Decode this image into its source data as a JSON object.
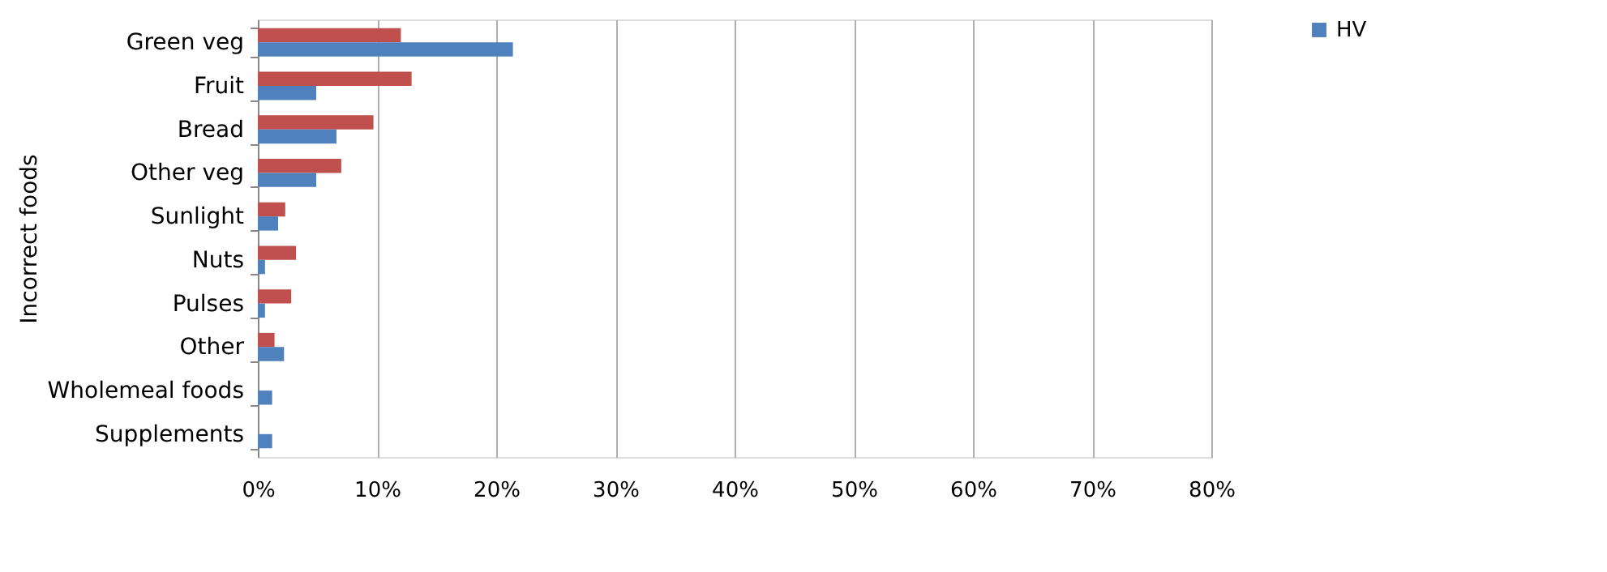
{
  "chart_data": {
    "type": "bar",
    "orientation": "horizontal",
    "ylabel": "Incorrect foods",
    "categories": [
      "Green veg",
      "Fruit",
      "Bread",
      "Other veg",
      "Sunlight",
      "Nuts",
      "Pulses",
      "Other",
      "Wholemeal foods",
      "Supplements"
    ],
    "series": [
      {
        "color": "#c0504d",
        "values": [
          12.0,
          12.9,
          9.7,
          7.0,
          2.3,
          3.2,
          2.8,
          1.4,
          null,
          null
        ]
      },
      {
        "name": "HV",
        "color": "#4f81bd",
        "values": [
          21.4,
          4.9,
          6.6,
          4.9,
          1.7,
          0.6,
          0.6,
          2.2,
          1.2,
          1.2
        ]
      }
    ],
    "xlim": [
      0,
      80
    ],
    "xticks": [
      {
        "value": 0,
        "label": "0%"
      },
      {
        "value": 10,
        "label": "10%"
      },
      {
        "value": 20,
        "label": "20%"
      },
      {
        "value": 30,
        "label": "30%"
      },
      {
        "value": 40,
        "label": "40%"
      },
      {
        "value": 50,
        "label": "50%"
      },
      {
        "value": 60,
        "label": "60%"
      },
      {
        "value": 70,
        "label": "70%"
      },
      {
        "value": 80,
        "label": "80%"
      }
    ],
    "grid": "x",
    "legend": "top right"
  }
}
